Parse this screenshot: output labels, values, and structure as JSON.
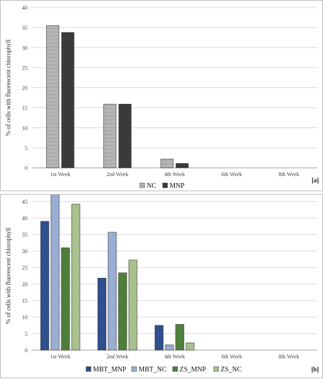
{
  "chart_data": [
    {
      "panel_label": "[a]",
      "type": "bar",
      "ylabel": "% of cells with fluorescent chlorophyll",
      "ylim": [
        0,
        40
      ],
      "yticks": [
        0,
        5,
        10,
        15,
        20,
        25,
        30,
        35,
        40
      ],
      "grid": true,
      "legend_position": "bottom",
      "categories": [
        "1st Week",
        "2nd Week",
        "4th Week",
        "6th Week",
        "8th Week"
      ],
      "series": [
        {
          "name": "NC",
          "values": [
            35.5,
            15.9,
            2.2,
            0,
            0
          ],
          "color": "#a6a6a6",
          "pattern": "horizontal-stripes"
        },
        {
          "name": "MNP",
          "values": [
            33.8,
            15.9,
            1.1,
            0,
            0
          ],
          "color": "#3a3a3a",
          "pattern": "solid"
        }
      ]
    },
    {
      "panel_label": "[b]",
      "type": "bar",
      "ylabel": "% of cells with fluorescent chlorophyll",
      "ylim": [
        0,
        45
      ],
      "yticks": [
        0,
        5,
        10,
        15,
        20,
        25,
        30,
        35,
        40,
        45
      ],
      "grid": true,
      "legend_position": "bottom",
      "categories": [
        "1st Week",
        "2nd Week",
        "4th Week",
        "6th Week",
        "8th Week"
      ],
      "series": [
        {
          "name": "MBT_MNP",
          "values": [
            39,
            21.8,
            7.5,
            0,
            0
          ],
          "color": "#2f4f8f"
        },
        {
          "name": "MBT_NC",
          "values": [
            47.5,
            35.7,
            1.6,
            0,
            0
          ],
          "color": "#9aadd3"
        },
        {
          "name": "ZS_MNP",
          "values": [
            31,
            23.4,
            7.8,
            0,
            0
          ],
          "color": "#4f7f3a"
        },
        {
          "name": "ZS_NC",
          "values": [
            44.2,
            27.3,
            2.2,
            0,
            0
          ],
          "color": "#a9c18f"
        }
      ]
    }
  ]
}
